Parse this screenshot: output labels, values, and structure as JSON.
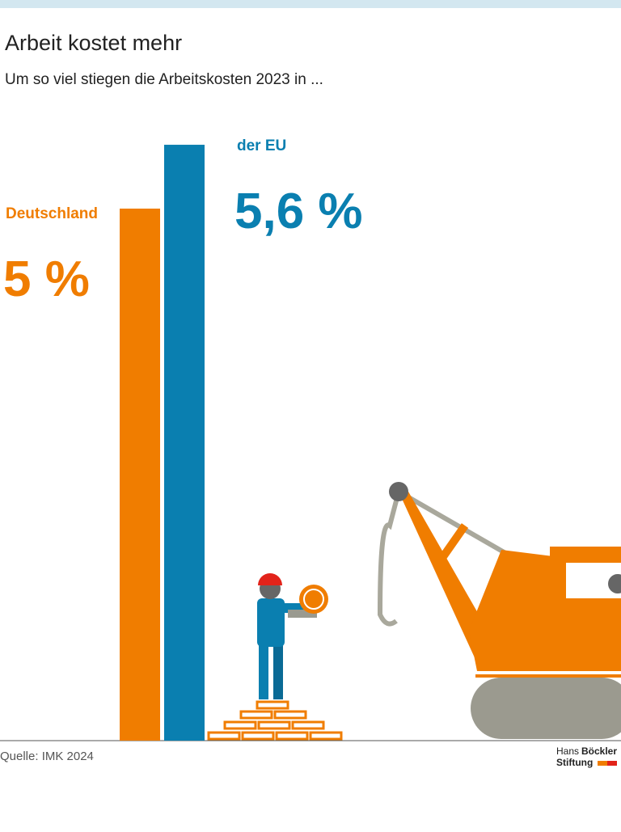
{
  "chart_data": {
    "type": "bar",
    "title": "Arbeit kostet mehr",
    "subtitle": "Um so viel stiegen die Arbeitskosten 2023 in ...",
    "categories": [
      "Deutschland",
      "der EU"
    ],
    "values": [
      5,
      5.6
    ],
    "value_labels": [
      "5 %",
      "5,6 %"
    ],
    "colors": [
      "#f07d00",
      "#0a7fb0"
    ],
    "source": "Quelle: IMK 2024",
    "brand": [
      "Hans",
      "Böckler",
      "Stiftung"
    ]
  }
}
